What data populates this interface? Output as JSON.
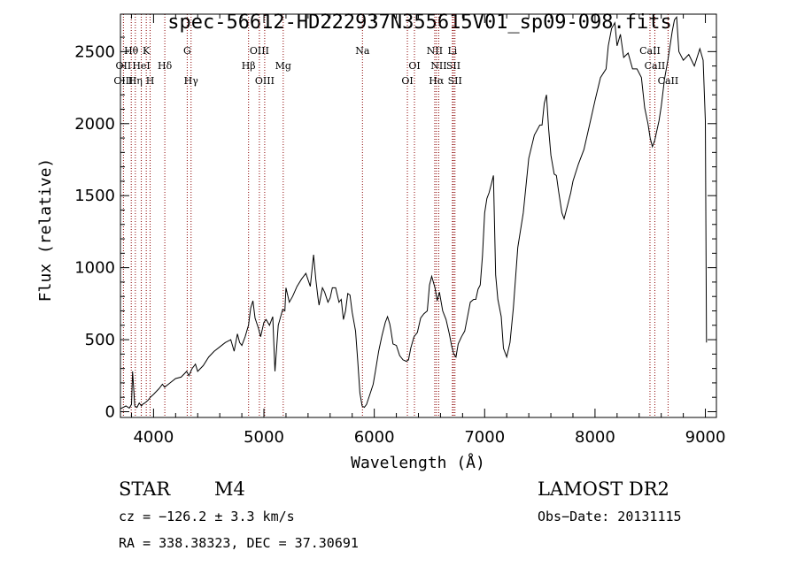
{
  "chart_data": {
    "type": "line",
    "title": "spec-56612-HD222937N355615V01_sp09-098.fits",
    "xlabel": "Wavelength (Å)",
    "ylabel": "Flux (relative)",
    "xlim": [
      3700,
      9100
    ],
    "ylim": [
      -40,
      2760
    ],
    "xticks": [
      4000,
      5000,
      6000,
      7000,
      8000,
      9000
    ],
    "yticks": [
      0,
      500,
      1000,
      1500,
      2000,
      2500
    ],
    "grid": false,
    "series": [
      {
        "x": [
          3700,
          3750,
          3780,
          3800,
          3810,
          3830,
          3850,
          3870,
          3890,
          3900,
          3920,
          3950,
          3970,
          4000,
          4050,
          4080,
          4100,
          4150,
          4200,
          4250,
          4300,
          4320,
          4350,
          4380,
          4400,
          4450,
          4500,
          4550,
          4600,
          4650,
          4700,
          4730,
          4760,
          4780,
          4800,
          4830,
          4860,
          4880,
          4900,
          4920,
          4950,
          4970,
          5000,
          5020,
          5050,
          5080,
          5100,
          5130,
          5170,
          5190,
          5200,
          5230,
          5260,
          5300,
          5340,
          5380,
          5420,
          5450,
          5470,
          5490,
          5500,
          5530,
          5550,
          5580,
          5600,
          5620,
          5650,
          5680,
          5700,
          5720,
          5740,
          5760,
          5780,
          5800,
          5830,
          5850,
          5870,
          5890,
          5910,
          5930,
          5960,
          5990,
          6010,
          6040,
          6070,
          6100,
          6120,
          6140,
          6150,
          6170,
          6200,
          6230,
          6260,
          6290,
          6310,
          6330,
          6360,
          6390,
          6420,
          6450,
          6480,
          6500,
          6520,
          6550,
          6570,
          6590,
          6620,
          6650,
          6680,
          6700,
          6720,
          6740,
          6760,
          6790,
          6820,
          6850,
          6870,
          6900,
          6920,
          6940,
          6960,
          6980,
          7000,
          7020,
          7040,
          7060,
          7080,
          7100,
          7120,
          7150,
          7170,
          7200,
          7230,
          7260,
          7300,
          7350,
          7400,
          7450,
          7500,
          7520,
          7540,
          7560,
          7580,
          7600,
          7630,
          7650,
          7670,
          7700,
          7720,
          7750,
          7780,
          7800,
          7850,
          7900,
          7950,
          8000,
          8050,
          8100,
          8120,
          8150,
          8180,
          8200,
          8230,
          8260,
          8300,
          8340,
          8380,
          8420,
          8450,
          8480,
          8500,
          8520,
          8540,
          8560,
          8580,
          8600,
          8630,
          8660,
          8700,
          8720,
          8740,
          8760,
          8800,
          8850,
          8900,
          8950,
          8980,
          9000,
          9010
        ],
        "y": [
          20,
          40,
          25,
          50,
          280,
          40,
          30,
          60,
          40,
          50,
          60,
          80,
          100,
          120,
          160,
          190,
          170,
          200,
          230,
          240,
          280,
          250,
          300,
          330,
          280,
          320,
          380,
          420,
          450,
          480,
          500,
          420,
          540,
          480,
          460,
          520,
          600,
          720,
          770,
          650,
          580,
          520,
          620,
          640,
          600,
          660,
          280,
          600,
          710,
          700,
          860,
          760,
          800,
          870,
          920,
          960,
          870,
          1090,
          920,
          790,
          740,
          860,
          830,
          760,
          790,
          860,
          860,
          760,
          780,
          640,
          700,
          820,
          810,
          690,
          560,
          350,
          130,
          40,
          30,
          50,
          120,
          190,
          280,
          420,
          530,
          620,
          660,
          610,
          570,
          470,
          460,
          390,
          360,
          350,
          360,
          440,
          520,
          550,
          650,
          680,
          700,
          880,
          940,
          860,
          770,
          830,
          700,
          640,
          540,
          460,
          400,
          380,
          470,
          520,
          560,
          680,
          760,
          780,
          780,
          850,
          880,
          1080,
          1380,
          1480,
          1520,
          1580,
          1640,
          950,
          780,
          660,
          440,
          380,
          480,
          720,
          1140,
          1380,
          1760,
          1920,
          1990,
          1990,
          2140,
          2200,
          1960,
          1780,
          1650,
          1640,
          1530,
          1380,
          1340,
          1430,
          1520,
          1600,
          1720,
          1820,
          1990,
          2160,
          2320,
          2380,
          2540,
          2660,
          2700,
          2540,
          2620,
          2460,
          2490,
          2380,
          2380,
          2320,
          2110,
          2000,
          1900,
          1840,
          1880,
          1950,
          2020,
          2120,
          2310,
          2440,
          2640,
          2720,
          2740,
          2500,
          2440,
          2480,
          2400,
          2520,
          2440,
          2020,
          480
        ]
      }
    ],
    "annotations": [
      {
        "label": "Hθ",
        "x": 3798,
        "row": 1
      },
      {
        "label": "K",
        "x": 3934,
        "row": 1
      },
      {
        "label": "G",
        "x": 4305,
        "row": 1
      },
      {
        "label": "OIII",
        "x": 4959,
        "row": 1
      },
      {
        "label": "Na",
        "x": 5893,
        "row": 1
      },
      {
        "label": "NII",
        "x": 6548,
        "row": 1
      },
      {
        "label": "Li",
        "x": 6708,
        "row": 1
      },
      {
        "label": "CaII",
        "x": 8498,
        "row": 1
      },
      {
        "label": "OII",
        "x": 3727,
        "row": 2
      },
      {
        "label": "HeI",
        "x": 3889,
        "row": 2
      },
      {
        "label": "Hδ",
        "x": 4102,
        "row": 2
      },
      {
        "label": "Hβ",
        "x": 4861,
        "row": 2
      },
      {
        "label": "Mg",
        "x": 5175,
        "row": 2
      },
      {
        "label": "OI",
        "x": 6364,
        "row": 2
      },
      {
        "label": "NII",
        "x": 6584,
        "row": 2
      },
      {
        "label": "SII",
        "x": 6717,
        "row": 2
      },
      {
        "label": "CaII",
        "x": 8542,
        "row": 2
      },
      {
        "label": "OIII",
        "x": 3727,
        "row": 3
      },
      {
        "label": "Hη",
        "x": 3835,
        "row": 3
      },
      {
        "label": "H",
        "x": 3969,
        "row": 3
      },
      {
        "label": "Hγ",
        "x": 4340,
        "row": 3
      },
      {
        "label": "OIII",
        "x": 5007,
        "row": 3
      },
      {
        "label": "OI",
        "x": 6300,
        "row": 3
      },
      {
        "label": "Hα",
        "x": 6563,
        "row": 3
      },
      {
        "label": "SII",
        "x": 6731,
        "row": 3
      },
      {
        "label": "CaII",
        "x": 8662,
        "row": 3
      }
    ],
    "line_marker_color": "#8b0000"
  },
  "info": {
    "object_class": "STAR",
    "subclass": "M4",
    "survey": "LAMOST DR2",
    "cz": "cz = −126.2 ± 3.3 km/s",
    "obs_date": "Obs−Date: 20131115",
    "coords": "RA = 338.38323, DEC =  37.30691"
  }
}
